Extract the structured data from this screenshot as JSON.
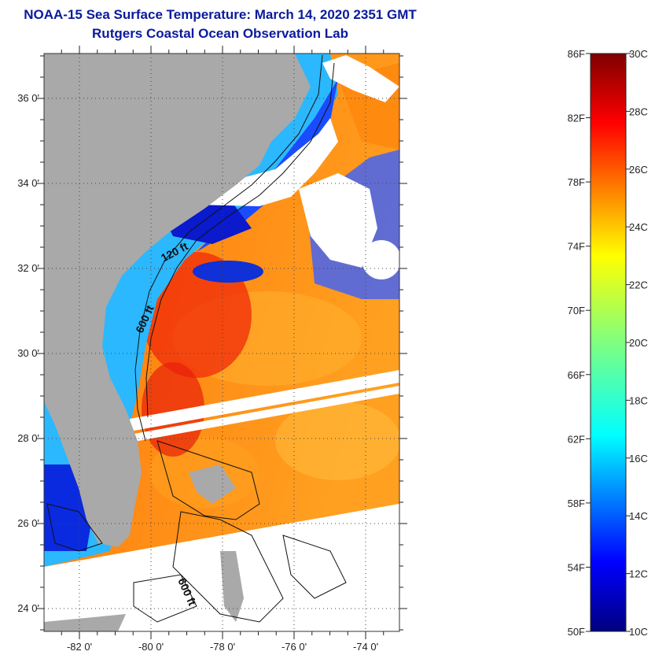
{
  "header": {
    "title": "NOAA-15 Sea Surface Temperature:  March 14, 2020 2351 GMT",
    "subtitle": "Rutgers Coastal Ocean Observation Lab"
  },
  "map": {
    "lat_ticks": [
      {
        "value": 36,
        "label": "36 0'"
      },
      {
        "value": 34,
        "label": "34 0'"
      },
      {
        "value": 32,
        "label": "32 0'"
      },
      {
        "value": 30,
        "label": "30 0'"
      },
      {
        "value": 28,
        "label": "28 0'"
      },
      {
        "value": 26,
        "label": "26 0'"
      },
      {
        "value": 24,
        "label": "24 0'"
      }
    ],
    "lon_ticks": [
      {
        "value": -82,
        "label": "-82 0'"
      },
      {
        "value": -80,
        "label": "-80 0'"
      },
      {
        "value": -78,
        "label": "-78 0'"
      },
      {
        "value": -76,
        "label": "-76 0'"
      },
      {
        "value": -74,
        "label": "-74 0'"
      }
    ],
    "contour_labels": [
      "120 ft",
      "600 ft",
      "600 ft"
    ],
    "grid": "dotted",
    "land_color": "#a9a9a9",
    "cloud_color": "#ffffff"
  },
  "colorbar": {
    "fahrenheit_labels": [
      "86F",
      "82F",
      "78F",
      "74F",
      "70F",
      "66F",
      "62F",
      "58F",
      "54F",
      "50F"
    ],
    "celsius_labels": [
      "30C",
      "28C",
      "26C",
      "24C",
      "22C",
      "20C",
      "18C",
      "16C",
      "14C",
      "12C",
      "10C"
    ],
    "range_c": [
      10,
      30
    ],
    "colormap": "jet"
  }
}
